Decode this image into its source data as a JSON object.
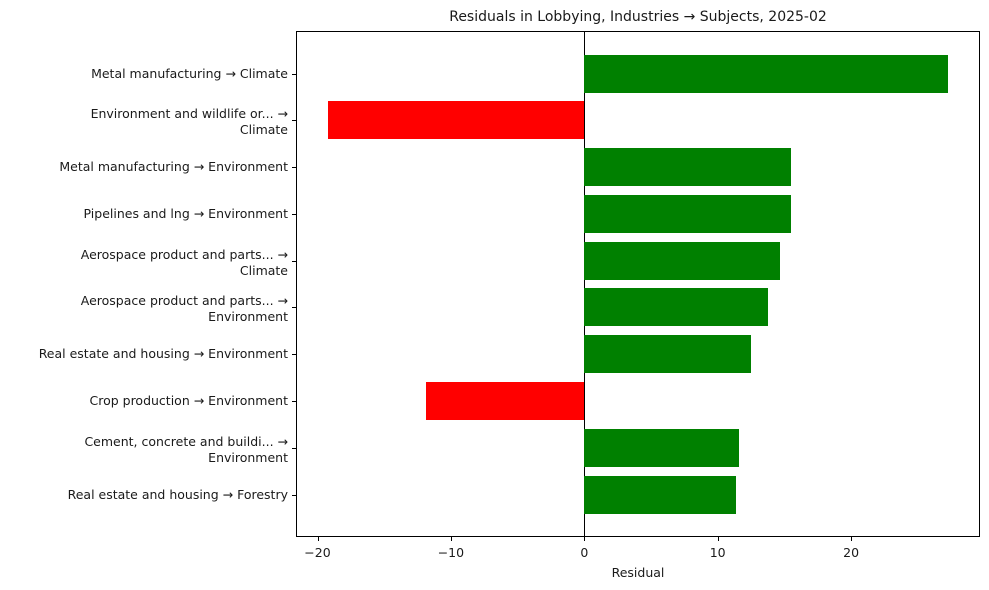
{
  "chart_data": {
    "type": "bar",
    "orientation": "horizontal",
    "title": "Residuals in Lobbying, Industries → Subjects, 2025-02",
    "xlabel": "Residual",
    "ylabel": "",
    "xlim": [
      -21.7,
      29.6
    ],
    "xticks": [
      -20,
      -10,
      0,
      10,
      20
    ],
    "xtick_labels": [
      "−20",
      "−10",
      "0",
      "10",
      "20"
    ],
    "grid": false,
    "legend": null,
    "colors": {
      "positive": "#008000",
      "negative": "#ff0000"
    },
    "categories": [
      "Metal manufacturing → Climate",
      "Environment and wildlife or... → Climate",
      "Metal manufacturing → Environment",
      "Pipelines and lng → Environment",
      "Aerospace product and parts... → Climate",
      "Aerospace product and parts... → Environment",
      "Real estate and housing → Environment",
      "Crop production → Environment",
      "Cement, concrete and buildi... → Environment",
      "Real estate and housing → Forestry"
    ],
    "values": [
      27.3,
      -19.2,
      15.5,
      15.5,
      14.7,
      13.8,
      12.5,
      -11.9,
      11.6,
      11.4
    ]
  },
  "labels": [
    {
      "line1": "Metal manufacturing → Climate",
      "line2": ""
    },
    {
      "line1": "Environment and wildlife or... →",
      "line2": "Climate"
    },
    {
      "line1": "Metal manufacturing → Environment",
      "line2": ""
    },
    {
      "line1": "Pipelines and lng → Environment",
      "line2": ""
    },
    {
      "line1": "Aerospace product and parts... →",
      "line2": "Climate"
    },
    {
      "line1": "Aerospace product and parts... →",
      "line2": "Environment"
    },
    {
      "line1": "Real estate and housing → Environment",
      "line2": ""
    },
    {
      "line1": "Crop production → Environment",
      "line2": ""
    },
    {
      "line1": "Cement, concrete and buildi... →",
      "line2": "Environment"
    },
    {
      "line1": "Real estate and housing → Forestry",
      "line2": ""
    }
  ]
}
